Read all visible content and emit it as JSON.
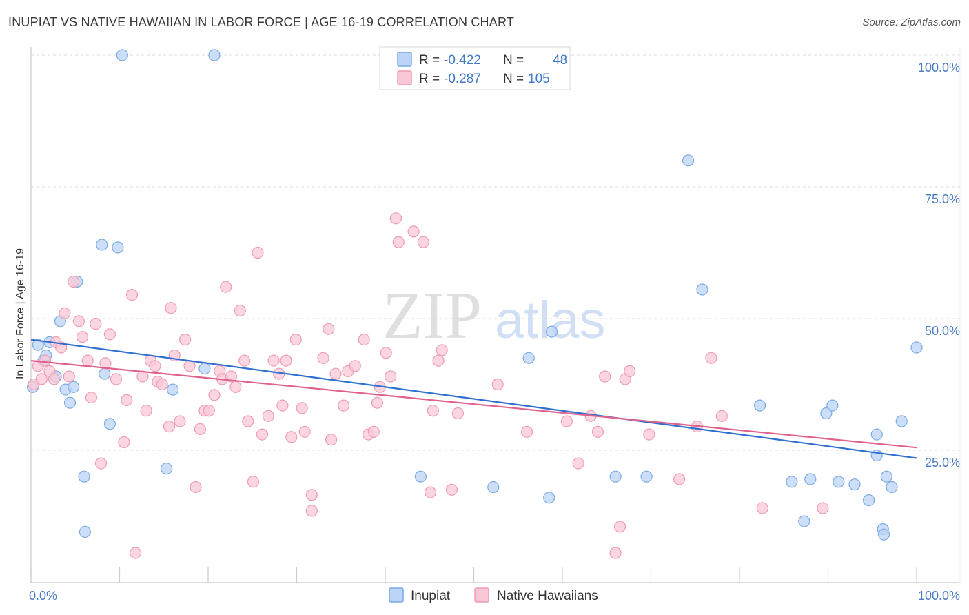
{
  "title": "INUPIAT VS NATIVE HAWAIIAN IN LABOR FORCE | AGE 16-19 CORRELATION CHART",
  "source": "Source: ZipAtlas.com",
  "watermark": {
    "zip": "ZIP",
    "atlas": "atlas"
  },
  "chart_data": {
    "type": "scatter",
    "xlabel": "",
    "ylabel": "In Labor Force | Age 16-19",
    "xlim": [
      0,
      100
    ],
    "ylim": [
      0,
      105
    ],
    "x_tick_labels": [
      "0.0%",
      "100.0%"
    ],
    "y_ticks": [
      25,
      50,
      75,
      100
    ],
    "y_tick_labels": [
      "25.0%",
      "50.0%",
      "75.0%",
      "100.0%"
    ],
    "legend": {
      "rows": [
        {
          "r_label": "R =",
          "r_value": "-0.422",
          "n_label": "N =",
          "n_value": "48"
        },
        {
          "r_label": "R =",
          "r_value": "-0.287",
          "n_label": "N =",
          "n_value": "105"
        }
      ]
    },
    "series": [
      {
        "name": "Inupiat",
        "color": "#7aaae6",
        "fill": "#bcd4f5",
        "trend": {
          "x": [
            0,
            100
          ],
          "y": [
            46,
            23.5
          ],
          "color": "#2f6fd0"
        },
        "points": [
          [
            0.2,
            37
          ],
          [
            0.8,
            45
          ],
          [
            1.4,
            42
          ],
          [
            1.7,
            43
          ],
          [
            2.1,
            45.5
          ],
          [
            2.8,
            39
          ],
          [
            3.3,
            49.5
          ],
          [
            3.9,
            36.5
          ],
          [
            4.4,
            34
          ],
          [
            4.8,
            37
          ],
          [
            5.2,
            57
          ],
          [
            6.0,
            20
          ],
          [
            6.1,
            9.5
          ],
          [
            8.0,
            64
          ],
          [
            8.3,
            39.5
          ],
          [
            8.9,
            30
          ],
          [
            9.8,
            63.5
          ],
          [
            10.3,
            100
          ],
          [
            15.3,
            21.5
          ],
          [
            16.0,
            36.5
          ],
          [
            19.6,
            40.5
          ],
          [
            20.7,
            100
          ],
          [
            44.0,
            20
          ],
          [
            52.2,
            18
          ],
          [
            56.2,
            42.5
          ],
          [
            58.5,
            16
          ],
          [
            58.8,
            47.5
          ],
          [
            66.0,
            20
          ],
          [
            69.5,
            20
          ],
          [
            74.2,
            80
          ],
          [
            75.8,
            55.5
          ],
          [
            82.3,
            33.5
          ],
          [
            85.9,
            19
          ],
          [
            87.3,
            11.5
          ],
          [
            88.0,
            19.5
          ],
          [
            89.8,
            32
          ],
          [
            90.5,
            33.5
          ],
          [
            91.2,
            19
          ],
          [
            93.0,
            18.5
          ],
          [
            94.6,
            15.5
          ],
          [
            95.5,
            24
          ],
          [
            95.5,
            28
          ],
          [
            96.2,
            10
          ],
          [
            96.3,
            9
          ],
          [
            96.6,
            20
          ],
          [
            97.2,
            18
          ],
          [
            98.3,
            30.5
          ],
          [
            100.0,
            44.5
          ]
        ]
      },
      {
        "name": "Native Hawaiians",
        "color": "#ef9bb3",
        "fill": "#f9c8d6",
        "trend": {
          "x": [
            0,
            100
          ],
          "y": [
            42,
            25.5
          ],
          "color": "#e0628c"
        },
        "points": [
          [
            0.3,
            37.5
          ],
          [
            0.8,
            41
          ],
          [
            1.2,
            38.5
          ],
          [
            1.6,
            42
          ],
          [
            2.1,
            40
          ],
          [
            2.6,
            38.5
          ],
          [
            2.8,
            45.5
          ],
          [
            3.4,
            44.5
          ],
          [
            3.8,
            51
          ],
          [
            4.3,
            39
          ],
          [
            4.8,
            57
          ],
          [
            5.4,
            49.5
          ],
          [
            5.8,
            46.5
          ],
          [
            6.4,
            42
          ],
          [
            6.8,
            35
          ],
          [
            7.3,
            49
          ],
          [
            7.9,
            22.5
          ],
          [
            8.4,
            41.5
          ],
          [
            8.9,
            47
          ],
          [
            9.6,
            38.5
          ],
          [
            10.5,
            26.5
          ],
          [
            10.8,
            34.5
          ],
          [
            11.4,
            54.5
          ],
          [
            11.8,
            5.5
          ],
          [
            12.6,
            39
          ],
          [
            13.0,
            32.5
          ],
          [
            13.5,
            42
          ],
          [
            14.0,
            41
          ],
          [
            14.3,
            38
          ],
          [
            14.8,
            37.5
          ],
          [
            15.6,
            29.5
          ],
          [
            15.8,
            52
          ],
          [
            16.2,
            43
          ],
          [
            16.8,
            30.5
          ],
          [
            17.4,
            46
          ],
          [
            17.9,
            41
          ],
          [
            18.6,
            18
          ],
          [
            19.1,
            29
          ],
          [
            19.6,
            32.5
          ],
          [
            20.1,
            32.5
          ],
          [
            20.7,
            35.5
          ],
          [
            21.3,
            40
          ],
          [
            21.6,
            38.5
          ],
          [
            22.0,
            56
          ],
          [
            22.6,
            39
          ],
          [
            23.1,
            37
          ],
          [
            23.6,
            51.5
          ],
          [
            24.1,
            42
          ],
          [
            24.5,
            30.5
          ],
          [
            25.1,
            19
          ],
          [
            25.6,
            62.5
          ],
          [
            26.1,
            28
          ],
          [
            26.8,
            31.5
          ],
          [
            27.4,
            42
          ],
          [
            28.0,
            39.5
          ],
          [
            28.4,
            33.5
          ],
          [
            28.8,
            42
          ],
          [
            29.4,
            27.5
          ],
          [
            29.9,
            46
          ],
          [
            30.6,
            33
          ],
          [
            30.9,
            28.5
          ],
          [
            31.7,
            16.5
          ],
          [
            31.7,
            13.5
          ],
          [
            33.0,
            42.5
          ],
          [
            33.6,
            48
          ],
          [
            33.9,
            27
          ],
          [
            34.4,
            39.5
          ],
          [
            35.3,
            33.5
          ],
          [
            35.8,
            40
          ],
          [
            36.6,
            41
          ],
          [
            37.6,
            46
          ],
          [
            38.1,
            28
          ],
          [
            38.7,
            28.5
          ],
          [
            39.1,
            34
          ],
          [
            39.4,
            37
          ],
          [
            40.1,
            43.5
          ],
          [
            40.6,
            39
          ],
          [
            41.2,
            69
          ],
          [
            41.5,
            64.5
          ],
          [
            43.2,
            66.5
          ],
          [
            44.3,
            64.5
          ],
          [
            45.1,
            17
          ],
          [
            45.4,
            32.5
          ],
          [
            46.0,
            42
          ],
          [
            46.4,
            44
          ],
          [
            47.5,
            17.5
          ],
          [
            48.2,
            32
          ],
          [
            52.7,
            37.5
          ],
          [
            56.0,
            28.5
          ],
          [
            60.5,
            30.5
          ],
          [
            61.8,
            22.5
          ],
          [
            63.2,
            31.5
          ],
          [
            64.0,
            28.5
          ],
          [
            64.8,
            39
          ],
          [
            66.0,
            5.5
          ],
          [
            66.5,
            10.5
          ],
          [
            67.1,
            38.5
          ],
          [
            67.6,
            40
          ],
          [
            69.8,
            28
          ],
          [
            73.2,
            19.5
          ],
          [
            75.2,
            29.5
          ],
          [
            76.8,
            42.5
          ],
          [
            78.0,
            31.5
          ],
          [
            82.6,
            14
          ],
          [
            89.4,
            14
          ]
        ]
      }
    ],
    "bottom_legend": [
      "Inupiat",
      "Native Hawaiians"
    ]
  }
}
